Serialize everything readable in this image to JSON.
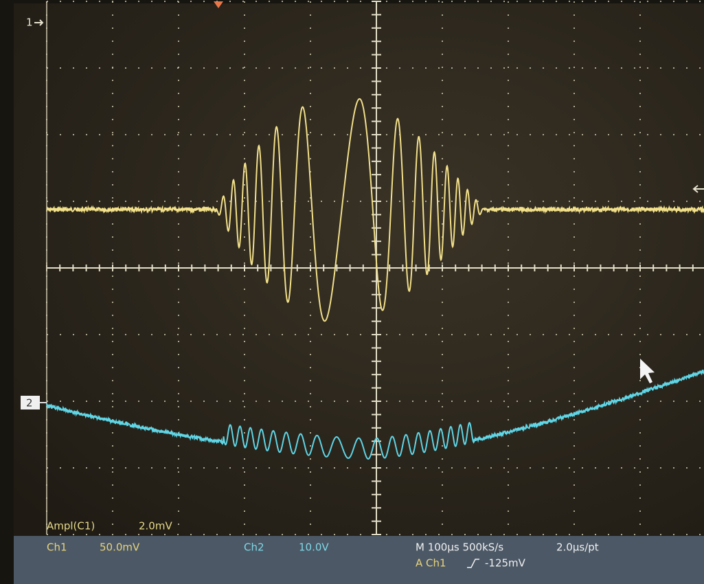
{
  "markers": {
    "ch1": "1",
    "ch2": "2"
  },
  "measurement": {
    "label": "Ampl(C1)",
    "value": "2.0mV"
  },
  "status": {
    "ch1_label": "Ch1",
    "ch1_scale": "50.0mV",
    "ch2_label": "Ch2",
    "ch2_scale": "10.0V",
    "timebase": "M 100µs 500kS/s",
    "resolution": "2.0µs/pt",
    "trigger_source": "A Ch1",
    "trigger_level": "-125mV"
  }
}
